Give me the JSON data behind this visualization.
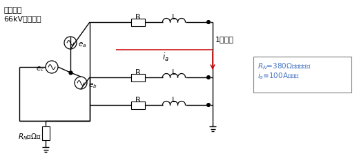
{
  "title_line1": "例えば、",
  "title_line2": "66kV電力系統",
  "label_1line": "1線地絡",
  "box_text_line1": "$R_N$=380Ωとすると、",
  "box_text_line2": "$i_a$≅100Aとなる",
  "rn_label": "$R_N$（Ω）",
  "ea_label": "$e_a$",
  "eb_label": "$e_b$",
  "ec_label": "$e_c$",
  "ia_label": "$i_a$",
  "R_label": "R",
  "L_label": "L",
  "bg_color": "#ffffff",
  "line_color": "#000000",
  "red_color": "#cc0000",
  "blue_color": "#4472c4",
  "figsize": [
    5.2,
    2.23
  ],
  "dpi": 100
}
